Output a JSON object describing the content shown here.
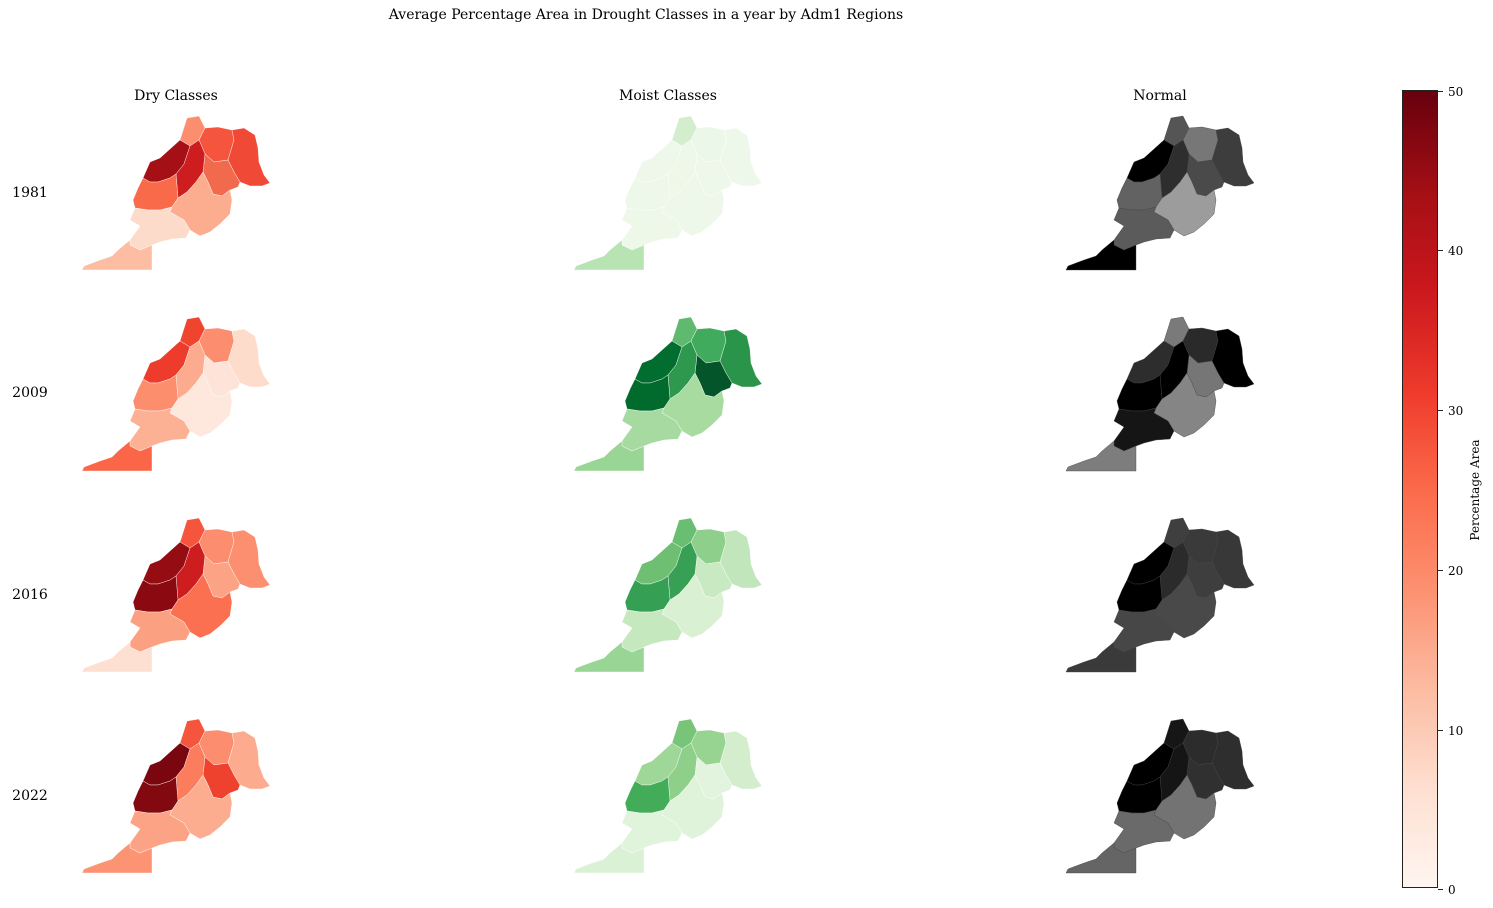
{
  "title": "Average Percentage Area in Drought Classes in a year by Adm1 Regions",
  "columns": [
    "Dry Classes",
    "Moist Classes",
    "Normal"
  ],
  "rows": [
    "1981",
    "2009",
    "2016",
    "2022"
  ],
  "colorbar": {
    "label": "Percentage Area",
    "ticks": [
      "0",
      "10",
      "20",
      "30",
      "40",
      "50"
    ],
    "range": [
      0,
      50
    ],
    "colormap": "Reds"
  },
  "colormaps": {
    "Dry Classes": "Reds",
    "Moist Classes": "Greens",
    "Normal": "Greys"
  },
  "region_colors": {
    "Dry Classes": {
      "1981": [
        "#fc8d6e",
        "#f6553d",
        "#f04a36",
        "#f16a4d",
        "#a51017",
        "#cd1d1f",
        "#f86a4a",
        "#fcac8f",
        "#fddbcb",
        "#fcbda3"
      ],
      "2009": [
        "#ef452f",
        "#fc8d6e",
        "#fddccb",
        "#fee4d8",
        "#ee3c2c",
        "#fdab8f",
        "#fc8e6e",
        "#fee7dc",
        "#fcb194",
        "#fb6649"
      ],
      "2016": [
        "#f6553d",
        "#fc8d6e",
        "#fc8f70",
        "#fca385",
        "#960c13",
        "#cd1d1f",
        "#8b0a12",
        "#fb7050",
        "#fca082",
        "#fee0d2"
      ],
      "2022": [
        "#f6553d",
        "#fc8d6e",
        "#fdab8f",
        "#ee412e",
        "#7a0710",
        "#fb7d5d",
        "#830910",
        "#fcad8f",
        "#fca385",
        "#fc9474"
      ]
    },
    "Moist Classes": {
      "1981": [
        "#d4eecd",
        "#ebf7e8",
        "#eef8ea",
        "#eef8ea",
        "#eef8ea",
        "#edf8e9",
        "#eef8ea",
        "#eef8ea",
        "#edf8e9",
        "#b8e3b2"
      ],
      "2009": [
        "#5fb96e",
        "#41ab5d",
        "#2b944b",
        "#04562a",
        "#016e30",
        "#2f984f",
        "#006b2c",
        "#a7dba0",
        "#a6daa0",
        "#99d594"
      ],
      "2016": [
        "#6abe71",
        "#8ed08b",
        "#c2e6bc",
        "#c8e9c1",
        "#6fbf73",
        "#37a055",
        "#35a053",
        "#d9f0d3",
        "#c6e8bf",
        "#99d594"
      ],
      "2022": [
        "#78c478",
        "#97d391",
        "#d4eecd",
        "#e3f4de",
        "#9ed798",
        "#8ecf8a",
        "#42ac59",
        "#dff3da",
        "#e0f3db",
        "#dbf1d5"
      ]
    },
    "Normal": {
      "1981": [
        "#555555",
        "#777777",
        "#3d3d3d",
        "#4a4a4a",
        "#000000",
        "#2e2e2e",
        "#626262",
        "#9c9c9c",
        "#5b5b5b",
        "#000000"
      ],
      "2009": [
        "#7a7a7a",
        "#2a2a2a",
        "#000000",
        "#767676",
        "#2d2d2d",
        "#000000",
        "#000000",
        "#858585",
        "#151515",
        "#7d7d7d"
      ],
      "2016": [
        "#3f3f3f",
        "#3a3a3a",
        "#383838",
        "#3e3e3e",
        "#000000",
        "#2b2b2b",
        "#000000",
        "#494949",
        "#474747",
        "#3a3a3a"
      ],
      "2022": [
        "#161616",
        "#2c2c2c",
        "#2e2e2e",
        "#303030",
        "#000000",
        "#151515",
        "#000000",
        "#737373",
        "#6a6a6a",
        "#656565"
      ]
    }
  }
}
